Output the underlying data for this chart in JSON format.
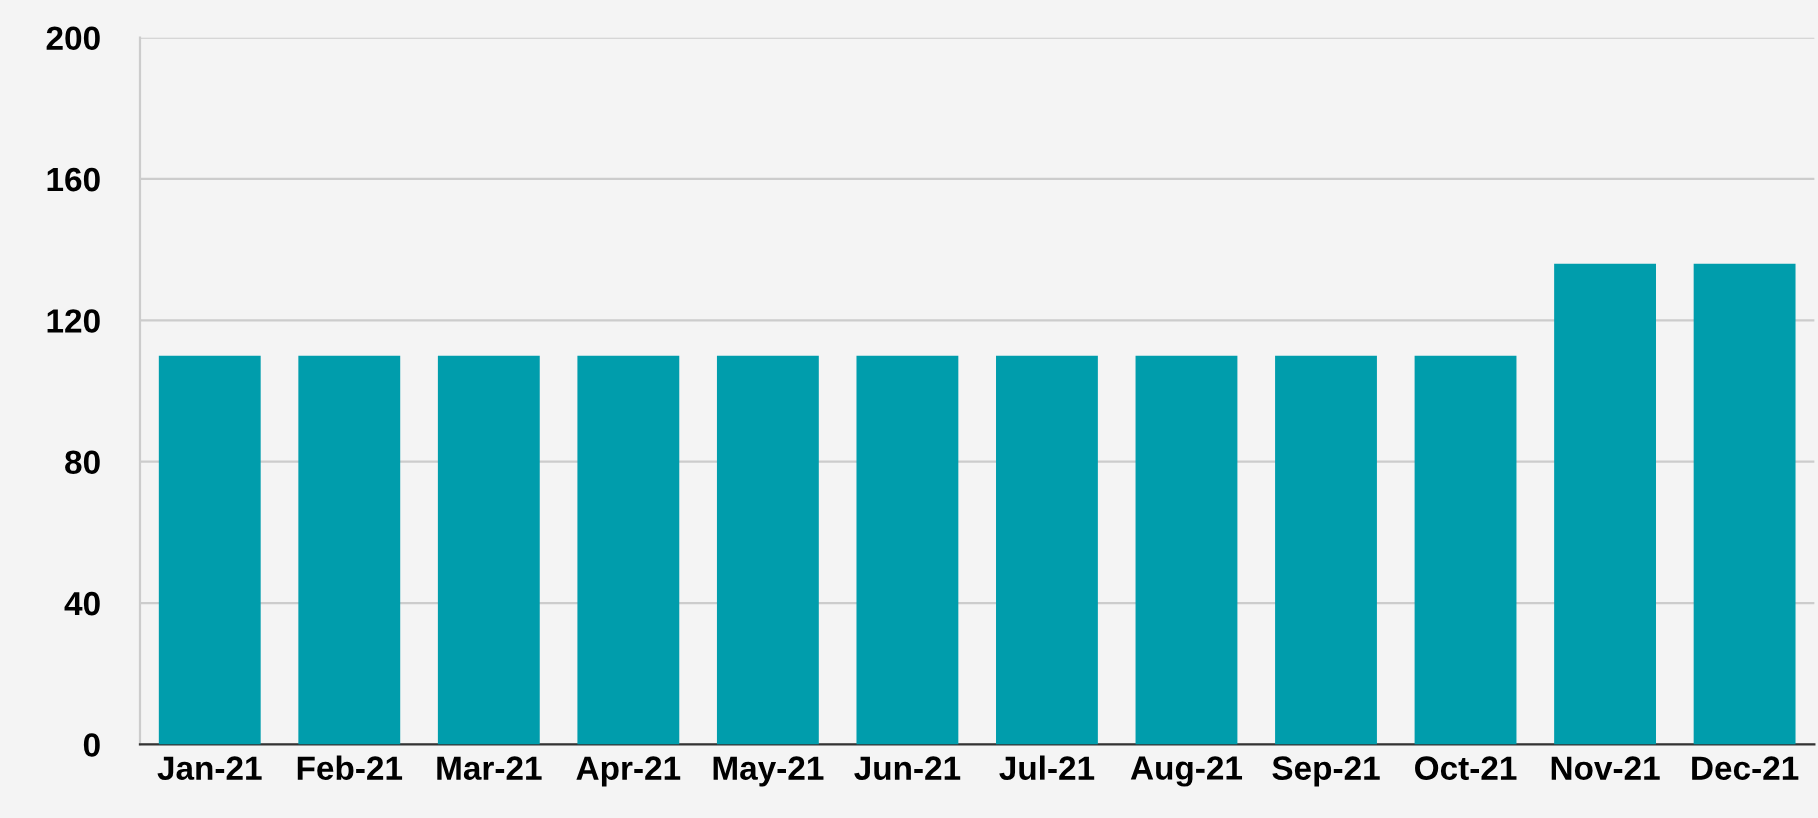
{
  "chart_data": {
    "type": "bar",
    "categories": [
      "Jan-21",
      "Feb-21",
      "Mar-21",
      "Apr-21",
      "May-21",
      "Jun-21",
      "Jul-21",
      "Aug-21",
      "Sep-21",
      "Oct-21",
      "Nov-21",
      "Dec-21"
    ],
    "values": [
      110,
      110,
      110,
      110,
      110,
      110,
      110,
      110,
      110,
      110,
      136,
      136
    ],
    "color": "#009dac",
    "ylim": [
      0,
      200
    ],
    "yticks": [
      0,
      40,
      80,
      120,
      160,
      200
    ],
    "grid": "y",
    "legend": false
  }
}
